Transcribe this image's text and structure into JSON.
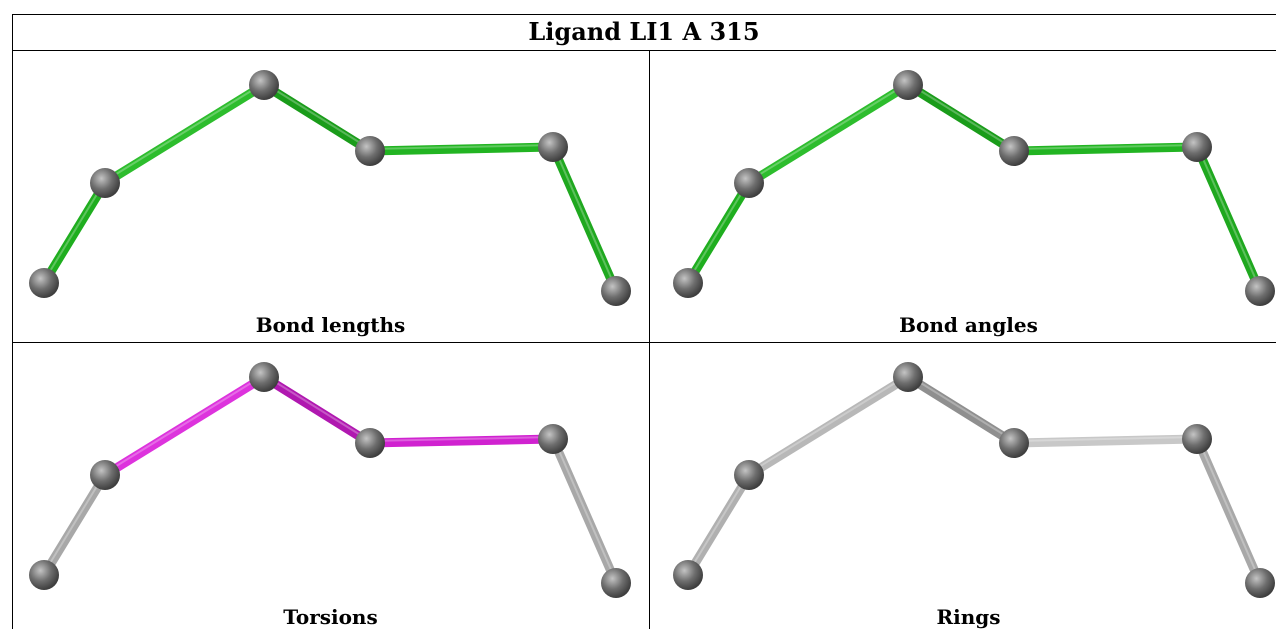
{
  "title": "Ligand LI1 A 315",
  "panels": [
    {
      "caption": "Bond lengths",
      "bond_colors": [
        "#1fae1f",
        "#2dbd2d",
        "#1a9c1a",
        "#22b422",
        "#1fa81f"
      ]
    },
    {
      "caption": "Bond angles",
      "bond_colors": [
        "#1fae1f",
        "#2dbd2d",
        "#1a9c1a",
        "#22b422",
        "#1fa81f"
      ]
    },
    {
      "caption": "Torsions",
      "bond_colors": [
        "#a8a8a8",
        "#dd33dd",
        "#b018b0",
        "#d022d0",
        "#a8a8a8"
      ]
    },
    {
      "caption": "Rings",
      "bond_colors": [
        "#b0b0b0",
        "#b8b8b8",
        "#8f8f8f",
        "#c8c8c8",
        "#a8a8a8"
      ]
    }
  ],
  "colors": {
    "atom": "#6e6e6e",
    "grid": "#000000"
  }
}
